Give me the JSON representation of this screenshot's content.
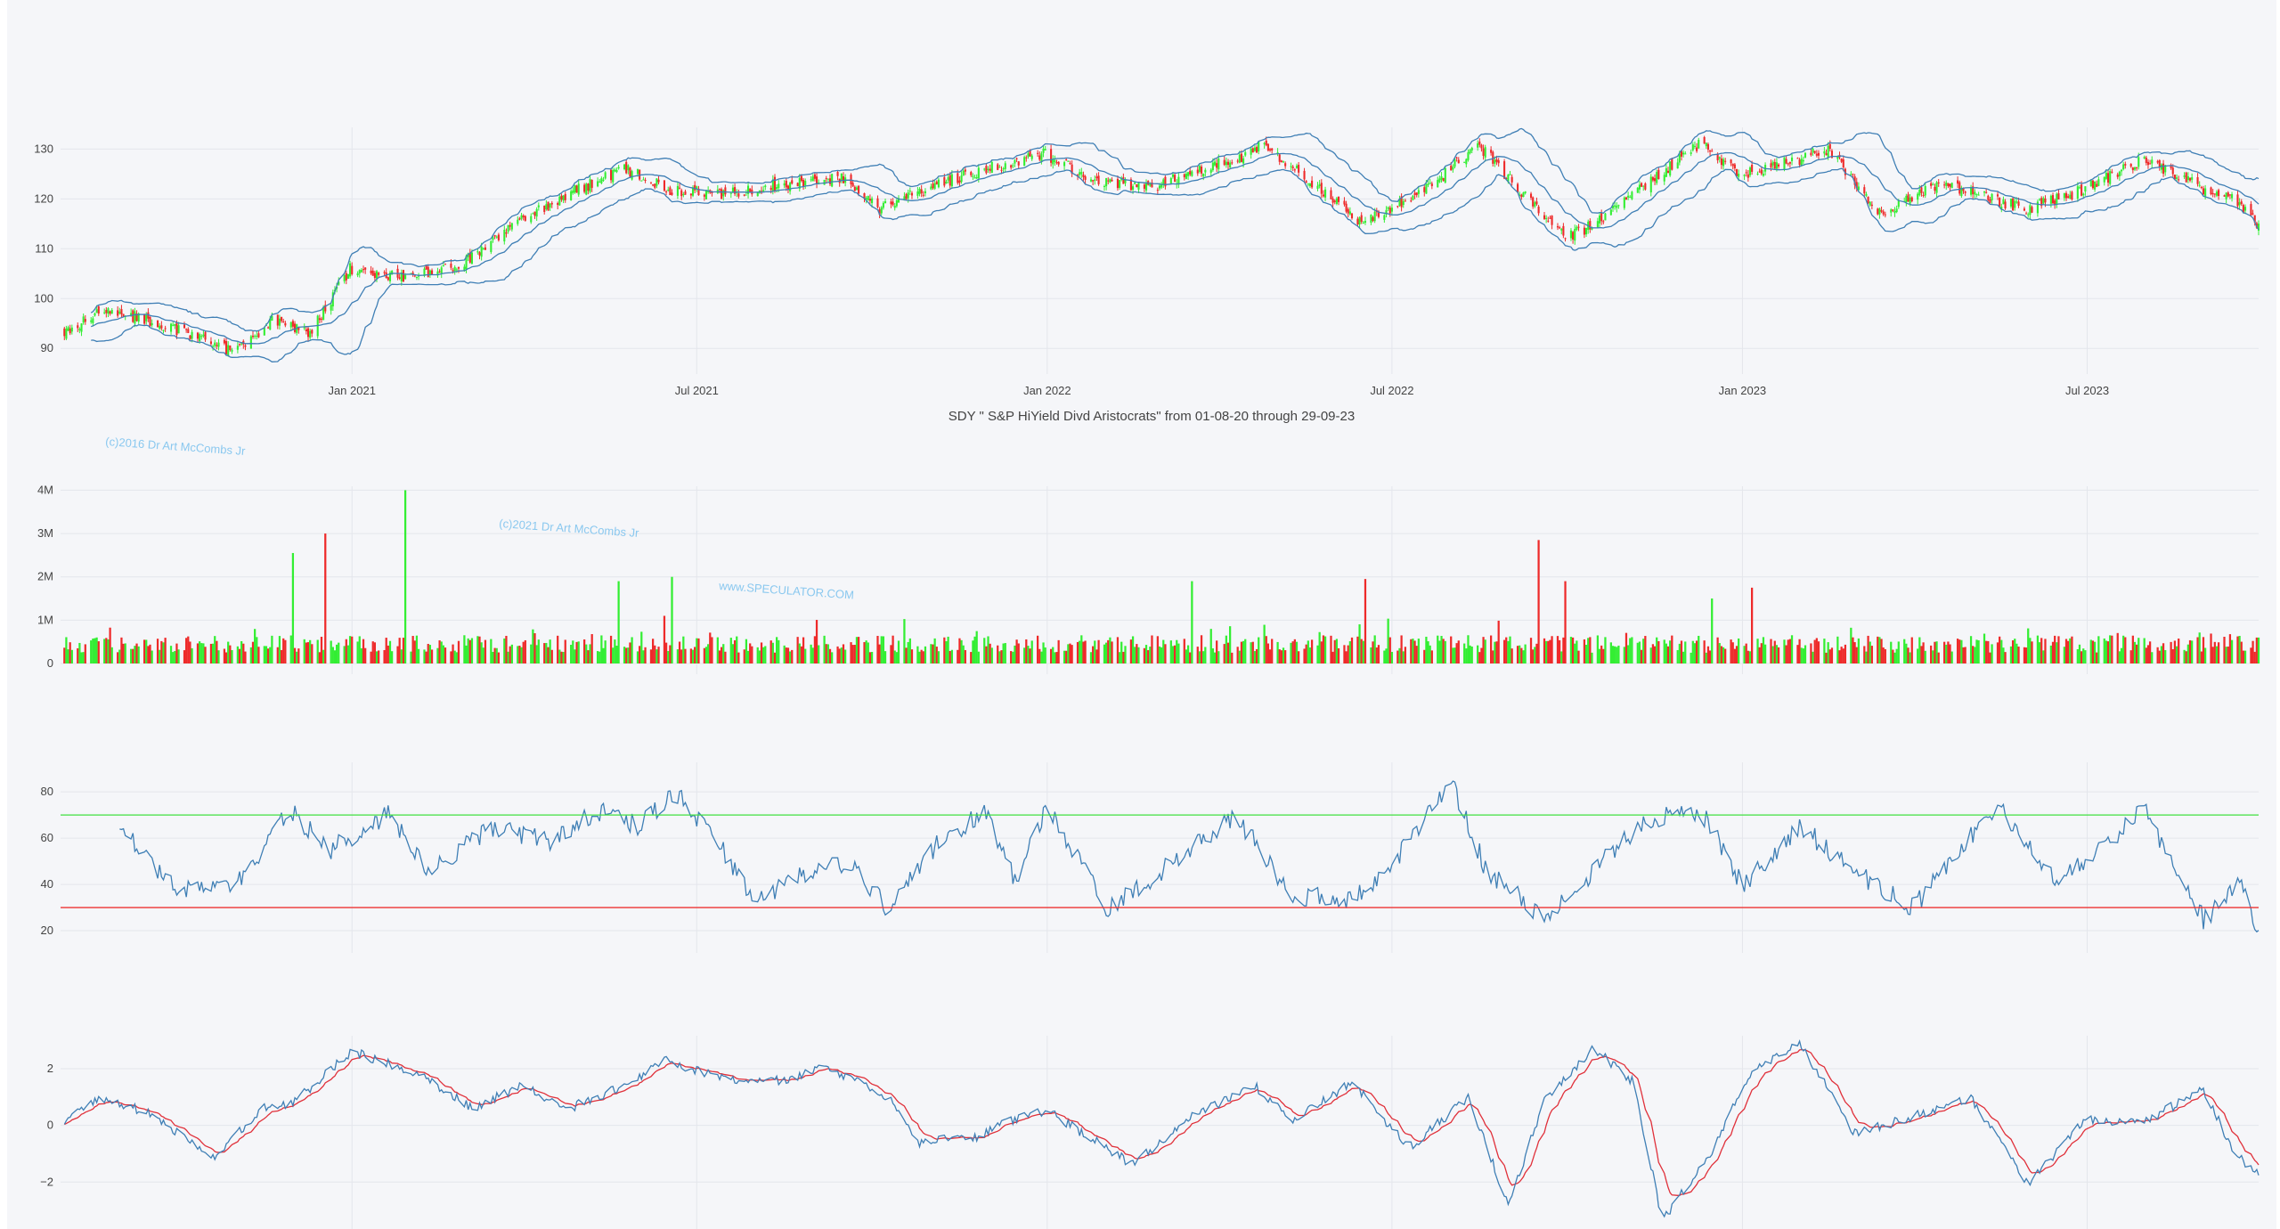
{
  "title": "SDY \" S&P HiYield Divd Aristocrats\" from 01-08-20 through 29-09-23",
  "watermarks": [
    "(c)2016 Dr Art McCombs Jr",
    "(c)2021 Dr Art McCombs Jr",
    "www.SPECULATOR.COM"
  ],
  "colors": {
    "background": "#f5f6f9",
    "grid": "#e4e6ec",
    "up": "#33ee33",
    "down": "#ee2a2a",
    "line": "#3f7fb5",
    "signal": "#e0303a",
    "overbought": "#40e040",
    "oversold": "#ee3333",
    "watermark": "#8ac8ef"
  },
  "chart_data": [
    {
      "panel": "price",
      "type": "candlestick",
      "overlays": [
        "bollinger upper band",
        "bollinger middle (20-period moving average)",
        "bollinger lower band"
      ],
      "x_tick_labels": [
        "Jan 2021",
        "Jul 2021",
        "Jan 2022",
        "Jul 2022",
        "Jan 2023",
        "Jul 2023"
      ],
      "x_tick_dates": [
        "2021-01-01",
        "2021-07-01",
        "2022-01-01",
        "2022-07-01",
        "2023-01-01",
        "2023-07-01"
      ],
      "x_range": [
        "2020-08-01",
        "2023-09-29"
      ],
      "y_ticks": [
        90,
        100,
        110,
        120,
        130
      ],
      "y_tick_labels": [
        "90",
        "100",
        "110",
        "120",
        "130"
      ],
      "ylim": [
        87,
        134
      ],
      "grid": true,
      "close_path": [
        [
          "2020-08-01",
          93
        ],
        [
          "2020-08-25",
          98
        ],
        [
          "2020-09-20",
          95
        ],
        [
          "2020-10-15",
          92
        ],
        [
          "2020-11-01",
          89
        ],
        [
          "2020-11-20",
          96
        ],
        [
          "2020-12-10",
          93
        ],
        [
          "2020-12-31",
          106
        ],
        [
          "2021-01-31",
          104
        ],
        [
          "2021-02-28",
          107
        ],
        [
          "2021-03-31",
          116
        ],
        [
          "2021-04-30",
          122
        ],
        [
          "2021-05-25",
          126
        ],
        [
          "2021-06-15",
          122
        ],
        [
          "2021-07-15",
          121
        ],
        [
          "2021-08-15",
          123
        ],
        [
          "2021-09-15",
          124
        ],
        [
          "2021-10-05",
          118
        ],
        [
          "2021-11-05",
          123
        ],
        [
          "2021-12-01",
          126
        ],
        [
          "2021-12-31",
          129
        ],
        [
          "2022-01-25",
          124
        ],
        [
          "2022-02-25",
          122
        ],
        [
          "2022-03-15",
          125
        ],
        [
          "2022-04-10",
          128
        ],
        [
          "2022-04-25",
          131
        ],
        [
          "2022-05-20",
          123
        ],
        [
          "2022-06-15",
          115
        ],
        [
          "2022-07-01",
          118
        ],
        [
          "2022-07-20",
          122
        ],
        [
          "2022-08-15",
          131
        ],
        [
          "2022-09-10",
          120
        ],
        [
          "2022-09-30",
          112
        ],
        [
          "2022-10-20",
          116
        ],
        [
          "2022-11-25",
          127
        ],
        [
          "2022-12-10",
          131
        ],
        [
          "2022-12-31",
          125
        ],
        [
          "2023-01-31",
          128
        ],
        [
          "2023-02-15",
          130
        ],
        [
          "2023-03-15",
          117
        ],
        [
          "2023-04-15",
          123
        ],
        [
          "2023-05-31",
          118
        ],
        [
          "2023-06-30",
          122
        ],
        [
          "2023-07-31",
          128
        ],
        [
          "2023-08-31",
          122
        ],
        [
          "2023-09-15",
          120
        ],
        [
          "2023-09-29",
          115
        ]
      ]
    },
    {
      "panel": "volume",
      "type": "bar",
      "y_ticks": [
        0,
        1000000,
        2000000,
        3000000,
        4000000
      ],
      "y_tick_labels": [
        "0",
        "1M",
        "2M",
        "3M",
        "4M"
      ],
      "ylim": [
        0,
        4050000
      ],
      "typical_volume": 450000,
      "volume_spikes": [
        [
          "2020-12-01",
          2550000,
          "up"
        ],
        [
          "2020-12-18",
          3000000,
          "down"
        ],
        [
          "2021-01-29",
          4000000,
          "up"
        ],
        [
          "2021-05-21",
          1900000,
          "up"
        ],
        [
          "2021-06-14",
          1100000,
          "down"
        ],
        [
          "2021-06-18",
          2000000,
          "up"
        ],
        [
          "2022-03-18",
          1900000,
          "up"
        ],
        [
          "2022-06-17",
          1950000,
          "down"
        ],
        [
          "2022-09-16",
          2850000,
          "down"
        ],
        [
          "2022-09-30",
          1900000,
          "down"
        ],
        [
          "2022-12-16",
          1500000,
          "up"
        ],
        [
          "2023-01-06",
          1750000,
          "down"
        ]
      ]
    },
    {
      "panel": "rsi",
      "type": "line",
      "y_ticks": [
        20,
        40,
        60,
        80
      ],
      "y_tick_labels": [
        "20",
        "40",
        "60",
        "80"
      ],
      "ylim": [
        15,
        92
      ],
      "reference_lines": [
        {
          "value": 70,
          "label": "overbought"
        },
        {
          "value": 30,
          "label": "oversold"
        }
      ],
      "path": [
        [
          "2020-09-01",
          65
        ],
        [
          "2020-10-01",
          38
        ],
        [
          "2020-11-01",
          40
        ],
        [
          "2020-11-30",
          72
        ],
        [
          "2020-12-20",
          55
        ],
        [
          "2021-01-20",
          70
        ],
        [
          "2021-02-10",
          45
        ],
        [
          "2021-03-15",
          65
        ],
        [
          "2021-04-15",
          58
        ],
        [
          "2021-05-10",
          72
        ],
        [
          "2021-06-01",
          65
        ],
        [
          "2021-06-20",
          80
        ],
        [
          "2021-07-10",
          60
        ],
        [
          "2021-08-01",
          33
        ],
        [
          "2021-08-25",
          45
        ],
        [
          "2021-09-20",
          50
        ],
        [
          "2021-10-10",
          29
        ],
        [
          "2021-11-05",
          58
        ],
        [
          "2021-11-30",
          72
        ],
        [
          "2021-12-15",
          42
        ],
        [
          "2022-01-01",
          73
        ],
        [
          "2022-02-01",
          30
        ],
        [
          "2022-03-01",
          45
        ],
        [
          "2022-04-10",
          70
        ],
        [
          "2022-05-10",
          35
        ],
        [
          "2022-06-10",
          33
        ],
        [
          "2022-07-01",
          48
        ],
        [
          "2022-08-01",
          85
        ],
        [
          "2022-08-20",
          45
        ],
        [
          "2022-09-20",
          25
        ],
        [
          "2022-10-20",
          50
        ],
        [
          "2022-11-10",
          68
        ],
        [
          "2022-12-10",
          72
        ],
        [
          "2023-01-01",
          40
        ],
        [
          "2023-02-01",
          65
        ],
        [
          "2023-03-01",
          45
        ],
        [
          "2023-04-01",
          30
        ],
        [
          "2023-05-15",
          75
        ],
        [
          "2023-06-15",
          40
        ],
        [
          "2023-07-31",
          72
        ],
        [
          "2023-08-31",
          25
        ],
        [
          "2023-09-20",
          40
        ],
        [
          "2023-09-29",
          19
        ]
      ]
    },
    {
      "panel": "macd",
      "type": "line",
      "series": [
        "macd",
        "signal"
      ],
      "y_ticks": [
        -2,
        0,
        2
      ],
      "y_tick_labels": [
        "−2",
        "0",
        "2"
      ],
      "ylim": [
        -3.5,
        3.1
      ],
      "path": [
        [
          "2020-08-01",
          0.0
        ],
        [
          "2020-08-20",
          0.9
        ],
        [
          "2020-09-15",
          0.5
        ],
        [
          "2020-10-20",
          -1.2
        ],
        [
          "2020-11-15",
          0.6
        ],
        [
          "2020-12-01",
          0.8
        ],
        [
          "2021-01-01",
          2.6
        ],
        [
          "2021-02-05",
          1.8
        ],
        [
          "2021-03-05",
          0.6
        ],
        [
          "2021-04-01",
          1.4
        ],
        [
          "2021-04-25",
          0.6
        ],
        [
          "2021-05-25",
          1.4
        ],
        [
          "2021-06-15",
          2.3
        ],
        [
          "2021-07-15",
          1.6
        ],
        [
          "2021-08-20",
          1.6
        ],
        [
          "2021-09-05",
          2.1
        ],
        [
          "2021-10-10",
          1.0
        ],
        [
          "2021-10-25",
          -0.6
        ],
        [
          "2021-11-25",
          -0.4
        ],
        [
          "2021-12-15",
          0.2
        ],
        [
          "2022-01-01",
          0.5
        ],
        [
          "2022-02-15",
          -1.4
        ],
        [
          "2022-03-20",
          0.4
        ],
        [
          "2022-04-20",
          1.4
        ],
        [
          "2022-05-10",
          0.2
        ],
        [
          "2022-06-10",
          1.5
        ],
        [
          "2022-07-10",
          -0.8
        ],
        [
          "2022-08-10",
          1.0
        ],
        [
          "2022-08-31",
          -2.8
        ],
        [
          "2022-09-20",
          1.0
        ],
        [
          "2022-10-15",
          2.7
        ],
        [
          "2022-11-05",
          1.5
        ],
        [
          "2022-11-20",
          -3.4
        ],
        [
          "2022-12-15",
          -1.0
        ],
        [
          "2023-01-05",
          1.8
        ],
        [
          "2023-01-31",
          2.9
        ],
        [
          "2023-03-01",
          -0.3
        ],
        [
          "2023-03-31",
          0.3
        ],
        [
          "2023-05-01",
          1.0
        ],
        [
          "2023-05-31",
          -2.1
        ],
        [
          "2023-06-30",
          0.2
        ],
        [
          "2023-07-31",
          0.1
        ],
        [
          "2023-08-31",
          1.3
        ],
        [
          "2023-09-15",
          -0.8
        ],
        [
          "2023-09-29",
          -1.8
        ]
      ]
    }
  ]
}
